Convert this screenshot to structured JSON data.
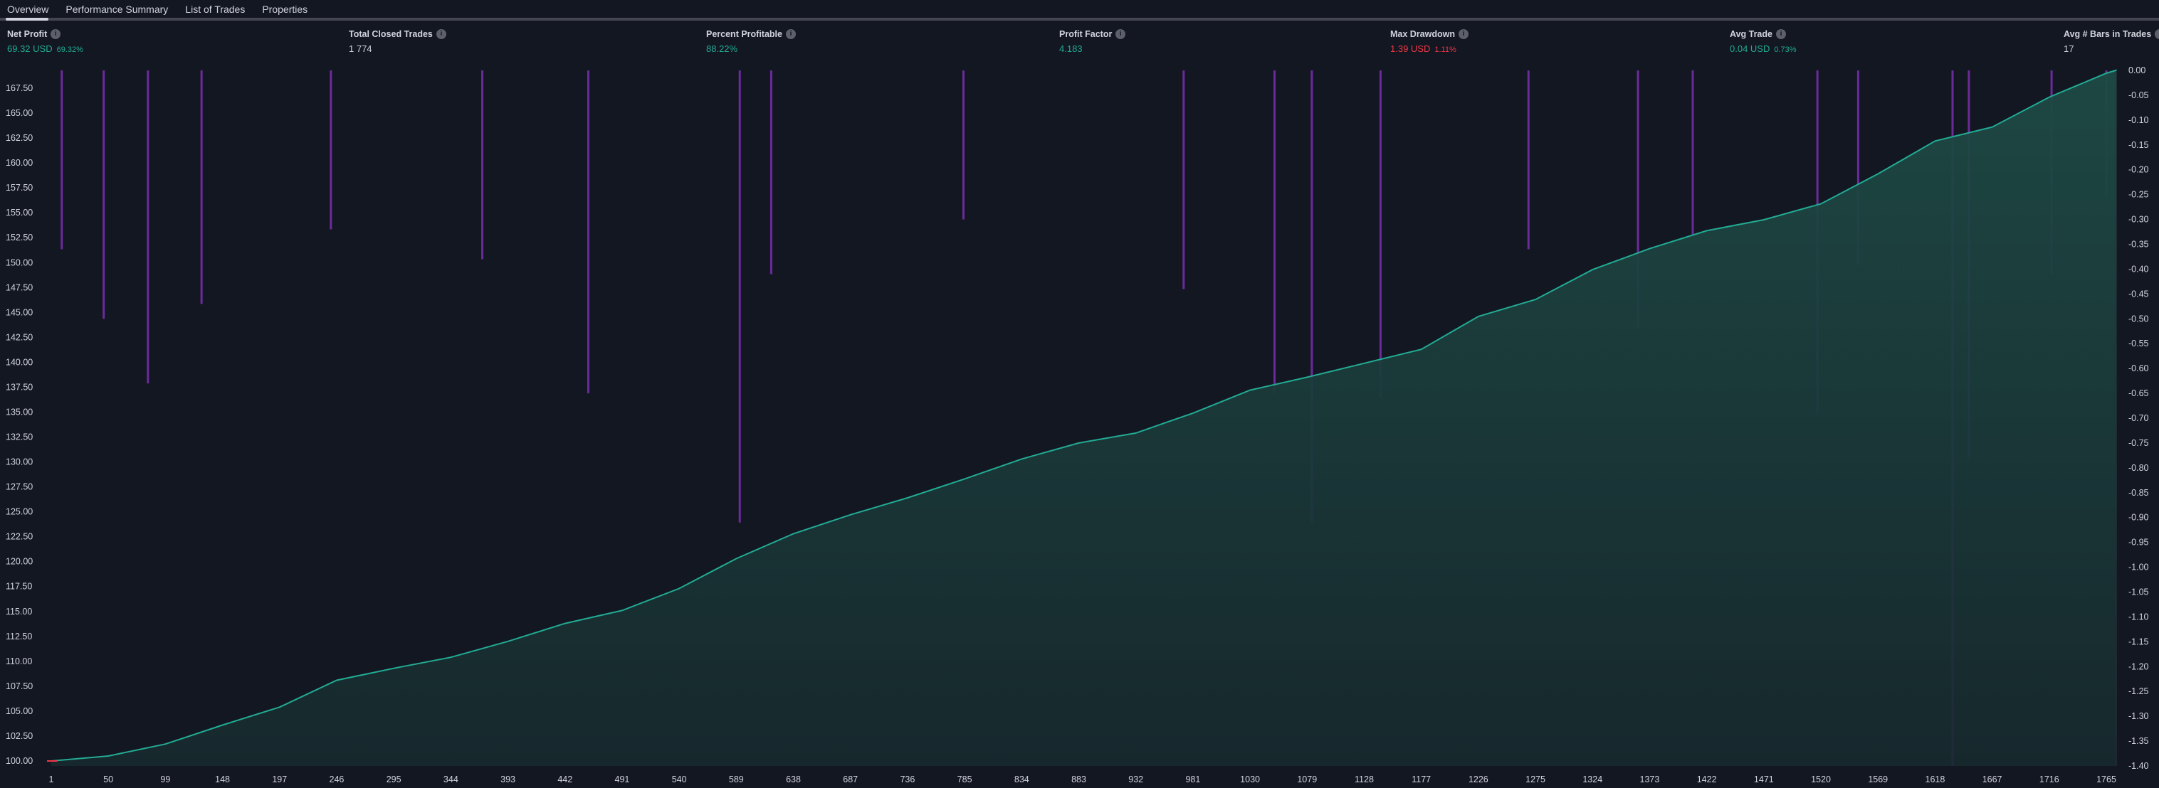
{
  "tabs": [
    "Overview",
    "Performance Summary",
    "List of Trades",
    "Properties"
  ],
  "active_tab": "Overview",
  "stats": [
    {
      "label": "Net Profit",
      "value": "69.32 USD",
      "sub": "69.32%",
      "tone": "pos"
    },
    {
      "label": "Total Closed Trades",
      "value": "1 774",
      "sub": "",
      "tone": "neu"
    },
    {
      "label": "Percent Profitable",
      "value": "88.22%",
      "sub": "",
      "tone": "pos"
    },
    {
      "label": "Profit Factor",
      "value": "4.183",
      "sub": "",
      "tone": "pos"
    },
    {
      "label": "Max Drawdown",
      "value": "1.39 USD",
      "sub": "1.11%",
      "tone": "neg"
    },
    {
      "label": "Avg Trade",
      "value": "0.04 USD",
      "sub": "0.73%",
      "tone": "pos"
    },
    {
      "label": "Avg # Bars in Trades",
      "value": "17",
      "sub": "",
      "tone": "neu"
    }
  ],
  "info_icon": "info-icon",
  "colors": {
    "equity_line": "#22ab94",
    "equity_fill": "#1c3b3a",
    "drawdown": "#7b2fb0",
    "background": "#131722",
    "start_marker": "#f23645"
  },
  "chart_data": {
    "type": "area",
    "x_ticks": [
      "1",
      "50",
      "99",
      "148",
      "197",
      "246",
      "295",
      "344",
      "393",
      "442",
      "491",
      "540",
      "589",
      "638",
      "687",
      "736",
      "785",
      "834",
      "883",
      "932",
      "981",
      "1030",
      "1079",
      "1128",
      "1177",
      "1226",
      "1275",
      "1324",
      "1373",
      "1422",
      "1471",
      "1520",
      "1569",
      "1618",
      "1667",
      "1716",
      "1765"
    ],
    "xlim": [
      1,
      1774
    ],
    "left_axis": {
      "ylim": [
        100,
        168.75
      ],
      "ticks": [
        "100.00",
        "102.50",
        "105.00",
        "107.50",
        "110.00",
        "112.50",
        "115.00",
        "117.50",
        "120.00",
        "122.50",
        "125.00",
        "127.50",
        "130.00",
        "132.50",
        "135.00",
        "137.50",
        "140.00",
        "142.50",
        "145.00",
        "147.50",
        "150.00",
        "152.50",
        "155.00",
        "157.50",
        "160.00",
        "162.50",
        "165.00",
        "167.50"
      ]
    },
    "right_axis": {
      "ylim": [
        -1.4,
        0
      ],
      "ticks": [
        "0.00",
        "-0.05",
        "-0.10",
        "-0.15",
        "-0.20",
        "-0.25",
        "-0.30",
        "-0.35",
        "-0.40",
        "-0.45",
        "-0.50",
        "-0.55",
        "-0.60",
        "-0.65",
        "-0.70",
        "-0.75",
        "-0.80",
        "-0.85",
        "-0.90",
        "-0.95",
        "-1.00",
        "-1.05",
        "-1.10",
        "-1.15",
        "-1.20",
        "-1.25",
        "-1.30",
        "-1.35",
        "-1.40"
      ]
    },
    "series": [
      {
        "kind": "equity",
        "axis": "left",
        "x": [
          1,
          50,
          99,
          148,
          197,
          246,
          295,
          344,
          393,
          442,
          491,
          540,
          589,
          638,
          687,
          736,
          785,
          834,
          883,
          932,
          981,
          1030,
          1079,
          1128,
          1177,
          1226,
          1275,
          1324,
          1373,
          1422,
          1471,
          1520,
          1569,
          1618,
          1667,
          1716,
          1765,
          1774
        ],
        "y": [
          100,
          100.5,
          101.7,
          103.6,
          105.4,
          108.1,
          109.3,
          110.4,
          112.0,
          113.8,
          115.1,
          117.3,
          120.3,
          122.8,
          124.7,
          126.4,
          128.3,
          130.3,
          131.9,
          132.9,
          134.9,
          137.2,
          138.5,
          139.9,
          141.3,
          144.6,
          146.3,
          149.3,
          151.4,
          153.2,
          154.3,
          155.9,
          158.9,
          162.2,
          163.6,
          166.6,
          169.0,
          169.32
        ]
      },
      {
        "kind": "drawdown",
        "axis": "right",
        "x": [
          10,
          46,
          84,
          130,
          241,
          371,
          462,
          592,
          619,
          784,
          973,
          1051,
          1083,
          1142,
          1269,
          1363,
          1410,
          1517,
          1552,
          1633,
          1647,
          1718,
          1765
        ],
        "y": [
          -0.36,
          -0.5,
          -0.63,
          -0.47,
          -0.32,
          -0.38,
          -0.65,
          -0.91,
          -0.41,
          -0.3,
          -0.44,
          -0.65,
          -0.91,
          -0.66,
          -0.36,
          -0.52,
          -0.33,
          -0.69,
          -0.39,
          -1.4,
          -0.78,
          -0.41,
          -0.25
        ]
      }
    ],
    "grid": false,
    "legend": "none"
  }
}
